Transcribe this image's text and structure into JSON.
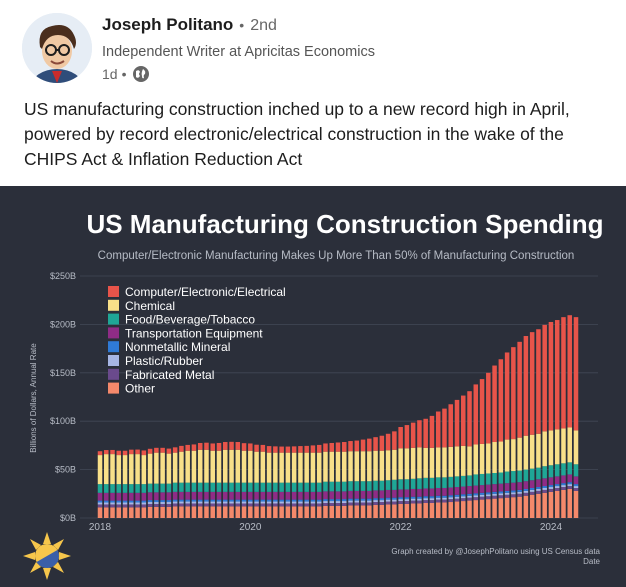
{
  "post": {
    "author_name": "Joseph Politano",
    "separator": "•",
    "connection_degree": "2nd",
    "author_headline": "Independent Writer at Apricitas Economics",
    "time_ago": "1d",
    "meta_separator": "•",
    "visibility_icon": "globe-icon",
    "avatar_icon": "cartoon-avatar-icon",
    "text": "US manufacturing construction inched up to a new record high in April, powered by record electronic/electrical construction in the wake of the CHIPS Act & Inflation Reduction Act"
  },
  "chart_data": {
    "type": "stacked-bar",
    "title": "US Manufacturing Construction Spending",
    "subtitle": "Computer/Electronic Manufacturing Makes Up More Than 50% of Manufacturing Construction",
    "ylabel": "Billions of Dollars, Annual Rate",
    "xlabel": "Date",
    "credit": "Graph created by @JosephPolitano using US Census data",
    "logo_icon": "apricitas-sun-logo-icon",
    "ylim": [
      0,
      250
    ],
    "y_ticks": [
      "$0B",
      "$50B",
      "$100B",
      "$150B",
      "$200B",
      "$250B"
    ],
    "y_tick_values": [
      0,
      50,
      100,
      150,
      200,
      250
    ],
    "x_ticks": [
      "2018",
      "2020",
      "2022",
      "2024"
    ],
    "x_tick_values": [
      2018,
      2020,
      2022,
      2024
    ],
    "legend_placement": "top-left",
    "colors": {
      "background": "#2b2f3a",
      "grid": "#424856",
      "text": "#ffffff",
      "subtext": "#b7bcc6"
    },
    "series": [
      {
        "name": "Computer/Electronic/Electrical",
        "color": "#e8544a",
        "values": [
          4,
          4.2,
          4.3,
          4.5,
          4.5,
          4.6,
          4.7,
          4.8,
          5,
          5,
          5,
          5.2,
          5.5,
          6,
          6,
          6.5,
          7,
          7.3,
          7.5,
          8,
          8,
          8.2,
          8,
          7.8,
          7.5,
          7.2,
          7,
          6.8,
          6.5,
          6.3,
          6.3,
          6.5,
          6.8,
          7,
          7.5,
          8,
          8.5,
          9,
          9.5,
          10,
          10.5,
          11,
          12,
          13,
          14,
          15.5,
          17,
          19,
          22,
          24,
          26,
          28,
          30,
          33,
          37,
          40,
          44,
          48,
          52,
          57,
          62,
          67,
          73,
          79,
          85,
          90,
          95,
          99,
          103,
          106,
          108,
          110,
          112,
          113,
          115,
          116,
          117
        ]
      },
      {
        "name": "Chemical",
        "color": "#f8e089",
        "values": [
          30,
          31,
          31,
          30,
          30,
          31,
          31,
          30,
          31,
          32,
          32,
          31,
          31,
          32,
          33,
          33,
          34,
          34,
          33,
          33,
          34,
          34,
          34,
          33,
          33,
          32,
          32,
          31,
          31,
          31,
          31,
          31,
          31,
          31,
          31,
          31,
          31,
          31,
          31,
          31,
          31,
          31,
          31,
          31,
          31,
          31,
          31,
          31,
          32,
          32,
          32,
          32,
          31,
          31,
          31,
          31,
          31,
          31,
          31,
          30,
          31,
          31,
          31,
          32,
          32,
          33,
          33,
          34,
          35,
          35,
          35,
          36,
          36,
          36,
          36,
          36,
          35
        ]
      },
      {
        "name": "Food/Beverage/Tobacco",
        "color": "#1fa696",
        "values": [
          9,
          9,
          9,
          9,
          9,
          9,
          9,
          9,
          9,
          9,
          9,
          9,
          9.5,
          9.5,
          9.5,
          9.5,
          9.5,
          9.5,
          9.5,
          9.5,
          9.5,
          9.5,
          9.5,
          9.5,
          9.5,
          9.5,
          9.5,
          9.5,
          9.5,
          9.5,
          9.5,
          9.5,
          9.5,
          9.5,
          9.5,
          9.5,
          10,
          10,
          10,
          10,
          10,
          10,
          10,
          10,
          10,
          10,
          10,
          10.5,
          10.5,
          10.5,
          10.5,
          11,
          11,
          11,
          11,
          11,
          11,
          11,
          11,
          11,
          11.5,
          11.5,
          11.5,
          11.5,
          11.5,
          12,
          12,
          12,
          12,
          12,
          12,
          12.5,
          12.5,
          12.5,
          12.5,
          12.5,
          12.5
        ]
      },
      {
        "name": "Transportation Equipment",
        "color": "#8f2c86",
        "values": [
          8,
          8,
          8,
          8,
          8,
          8,
          8,
          8,
          8,
          8,
          8,
          8,
          8,
          8,
          8,
          8,
          8,
          8,
          8,
          8,
          8,
          8,
          8,
          8,
          8,
          8,
          8,
          8,
          8,
          8,
          8,
          8,
          8,
          8,
          8,
          8,
          8,
          8,
          8,
          8,
          8,
          8,
          8,
          8,
          8,
          8,
          8,
          8,
          8,
          8,
          8,
          8,
          8,
          8,
          8,
          8,
          8,
          8,
          8,
          8,
          8,
          8,
          8,
          8,
          8,
          8,
          8,
          8,
          8,
          8,
          8,
          8,
          8,
          8,
          8,
          8,
          8
        ]
      },
      {
        "name": "Nonmetallic Mineral",
        "color": "#2f7ad6",
        "values": [
          2,
          2,
          2,
          2,
          2,
          2,
          2,
          2,
          2,
          2,
          2,
          2,
          2,
          2,
          2,
          2,
          2,
          2,
          2,
          2,
          2,
          2,
          2,
          2,
          2,
          2,
          2,
          2,
          2,
          2,
          2,
          2,
          2,
          2,
          2,
          2,
          2,
          2,
          2,
          2,
          2,
          2,
          2,
          2,
          2,
          2,
          2,
          2,
          2,
          2,
          2,
          2,
          2,
          2,
          2,
          2,
          2,
          2,
          2,
          2,
          2,
          2,
          2,
          2,
          2,
          2,
          2,
          2,
          2,
          2,
          2,
          2,
          2,
          2,
          2,
          2,
          2
        ]
      },
      {
        "name": "Plastic/Rubber",
        "color": "#a7b6e4",
        "values": [
          2,
          2,
          2,
          2,
          2,
          2,
          2,
          2,
          2,
          2,
          2,
          2,
          2,
          2,
          2,
          2,
          2,
          2,
          2,
          2,
          2,
          2,
          2,
          2,
          2,
          2,
          2,
          2,
          2,
          2,
          2,
          2,
          2,
          2,
          2,
          2,
          2,
          2,
          2,
          2,
          2,
          2,
          2,
          2,
          2,
          2,
          2,
          2,
          2,
          2,
          2,
          2,
          2,
          2,
          2,
          2,
          2,
          2,
          2,
          2,
          2,
          2,
          2,
          2,
          2,
          2,
          2,
          2,
          2,
          2,
          2,
          2,
          2,
          2,
          2,
          2,
          2
        ]
      },
      {
        "name": "Fabricated Metal",
        "color": "#6a4a8c",
        "values": [
          3,
          3,
          3,
          3,
          3,
          3,
          3,
          3,
          3,
          3,
          3,
          3,
          3,
          3,
          3,
          3,
          3,
          3,
          3,
          3,
          3,
          3,
          3,
          3,
          3,
          3,
          3,
          3,
          3,
          3,
          3,
          3,
          3,
          3,
          3,
          3,
          3,
          3,
          3,
          3,
          3,
          3,
          3,
          3,
          3,
          3,
          3,
          3,
          3,
          3,
          3,
          3,
          3,
          3,
          3,
          3,
          3,
          3,
          3,
          3,
          3,
          3,
          3,
          3,
          3,
          3,
          3,
          3,
          3,
          3,
          3,
          3,
          3,
          3,
          3,
          3,
          3
        ]
      },
      {
        "name": "Other",
        "color": "#f4896b",
        "values": [
          11,
          11,
          11,
          11,
          11,
          11,
          11,
          11,
          11.5,
          11.5,
          11.5,
          11.5,
          12,
          12,
          12,
          12,
          12,
          12,
          12,
          12,
          12,
          12,
          12,
          12,
          12,
          12,
          12,
          12,
          12,
          12,
          12,
          12,
          12,
          12,
          12,
          12,
          12.5,
          12.5,
          12.5,
          12.5,
          13,
          13,
          13,
          13,
          13.5,
          13.5,
          14,
          14,
          14.5,
          14.5,
          15,
          15,
          15.5,
          15.5,
          16,
          16,
          16.5,
          17,
          17.5,
          18,
          18.5,
          19,
          19.5,
          20,
          20.5,
          21,
          21.5,
          22,
          23,
          24,
          25,
          26,
          27,
          28,
          29,
          30,
          28
        ]
      }
    ],
    "start_year": 2018,
    "months": 77
  }
}
